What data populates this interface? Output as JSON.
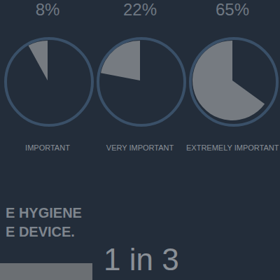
{
  "chart_data": {
    "type": "gauge",
    "categories": [
      "IMPORTANT",
      "VERY IMPORTANT",
      "EXTREMELY IMPORTANT"
    ],
    "values": [
      8,
      22,
      65
    ],
    "value_labels": [
      "8%",
      "22%",
      "65%"
    ],
    "color": "#85898e",
    "data_labels": true,
    "annotations": [
      "E HYGIENE",
      "E DEVICE.",
      "1 in 3"
    ]
  }
}
